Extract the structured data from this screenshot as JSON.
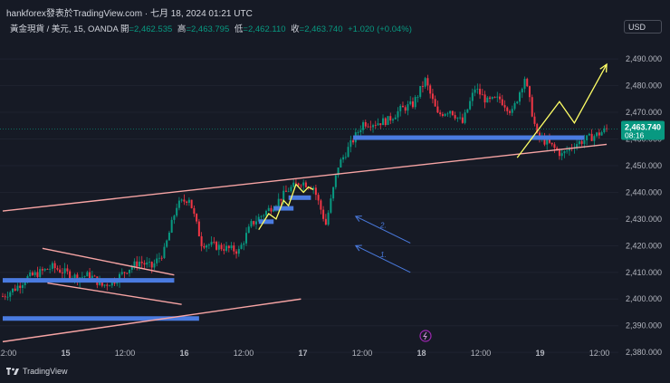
{
  "header": {
    "text": "hankforex發表於TradingView.com · 七月 18, 2024 01:21 UTC"
  },
  "legend": {
    "symbol": "黃金現貨 / 美元, 15, OANDA",
    "open_label": "開",
    "open": "=2,462.535",
    "high_label": "高",
    "high": "=2,463.795",
    "low_label": "低",
    "low": "=2,462.110",
    "close_label": "收",
    "close": "=2,463.740",
    "change": "+1.020 (+0.04%)"
  },
  "currency": "USD",
  "footer": {
    "brand": "TradingView"
  },
  "colors": {
    "up": "#089981",
    "down": "#f23645",
    "trend": "#f7a4a4",
    "zone": "#4a7be0",
    "path": "#ffff66",
    "bg": "#161a25"
  },
  "chart_data": {
    "type": "candlestick",
    "ylim": [
      2377,
      2506
    ],
    "y_ticks": [
      "2,380.000",
      "2,390.000",
      "2,400.000",
      "2,410.000",
      "2,420.000",
      "2,430.000",
      "2,440.000",
      "2,450.000",
      "2,460.000",
      "2,470.000",
      "2,480.000",
      "2,490.000"
    ],
    "x_ticks": [
      "12:00",
      "15",
      "12:00",
      "16",
      "12:00",
      "17",
      "12:00",
      "18",
      "12:00",
      "19",
      "12:00"
    ],
    "last_price": "2,463.740",
    "countdown": "08:16",
    "price_path": [
      [
        0,
        2401
      ],
      [
        5,
        2404
      ],
      [
        10,
        2408
      ],
      [
        15,
        2410
      ],
      [
        20,
        2412
      ],
      [
        25,
        2410
      ],
      [
        30,
        2408
      ],
      [
        35,
        2409
      ],
      [
        40,
        2405
      ],
      [
        45,
        2407
      ],
      [
        50,
        2411
      ],
      [
        55,
        2414
      ],
      [
        60,
        2412
      ],
      [
        65,
        2418
      ],
      [
        70,
        2435
      ],
      [
        75,
        2438
      ],
      [
        80,
        2421
      ],
      [
        85,
        2420
      ],
      [
        90,
        2419
      ],
      [
        95,
        2418
      ],
      [
        100,
        2428
      ],
      [
        105,
        2432
      ],
      [
        110,
        2436
      ],
      [
        115,
        2441
      ],
      [
        120,
        2444
      ],
      [
        125,
        2442
      ],
      [
        130,
        2428
      ],
      [
        135,
        2450
      ],
      [
        140,
        2458
      ],
      [
        145,
        2466
      ],
      [
        150,
        2466
      ],
      [
        155,
        2467
      ],
      [
        160,
        2471
      ],
      [
        165,
        2473
      ],
      [
        170,
        2482
      ],
      [
        175,
        2469
      ],
      [
        180,
        2471
      ],
      [
        185,
        2466
      ],
      [
        190,
        2479
      ],
      [
        195,
        2474
      ],
      [
        200,
        2475
      ],
      [
        205,
        2470
      ],
      [
        210,
        2483
      ],
      [
        215,
        2461
      ],
      [
        220,
        2458
      ],
      [
        225,
        2454
      ],
      [
        230,
        2458
      ],
      [
        235,
        2460
      ],
      [
        240,
        2462
      ],
      [
        243,
        2463.7
      ]
    ],
    "annotations": {
      "trendlines": [
        {
          "from": [
            0,
            2433
          ],
          "to": [
            243,
            2458
          ]
        },
        {
          "from": [
            0,
            2384
          ],
          "to": [
            120,
            2400
          ]
        },
        {
          "from": [
            16,
            2419
          ],
          "to": [
            69,
            2409
          ]
        },
        {
          "from": [
            18,
            2406
          ],
          "to": [
            72,
            2398
          ]
        }
      ],
      "zones": [
        {
          "from": 0,
          "to": 69,
          "y": 2407
        },
        {
          "from": 0,
          "to": 79,
          "y": 2392.7
        },
        {
          "from": 103,
          "to": 109,
          "y": 2429
        },
        {
          "from": 109,
          "to": 117,
          "y": 2434
        },
        {
          "from": 115,
          "to": 124,
          "y": 2438
        },
        {
          "from": 141,
          "to": 234,
          "y": 2460.5
        }
      ],
      "yellow_zigzag": [
        [
          103,
          2426
        ],
        [
          107,
          2432
        ],
        [
          110,
          2430
        ],
        [
          113,
          2437
        ],
        [
          115,
          2435
        ],
        [
          118,
          2443
        ],
        [
          121,
          2440
        ],
        [
          123,
          2442
        ],
        [
          125,
          2441
        ]
      ],
      "projection": [
        [
          207,
          2453
        ],
        [
          224,
          2474
        ],
        [
          230,
          2466
        ],
        [
          243,
          2488
        ]
      ],
      "arrows": [
        {
          "label": "2.",
          "from": [
            164,
            2421
          ],
          "to": [
            142,
            2431
          ]
        },
        {
          "label": "1.",
          "from": [
            164,
            2410
          ],
          "to": [
            142,
            2420
          ]
        }
      ]
    }
  }
}
